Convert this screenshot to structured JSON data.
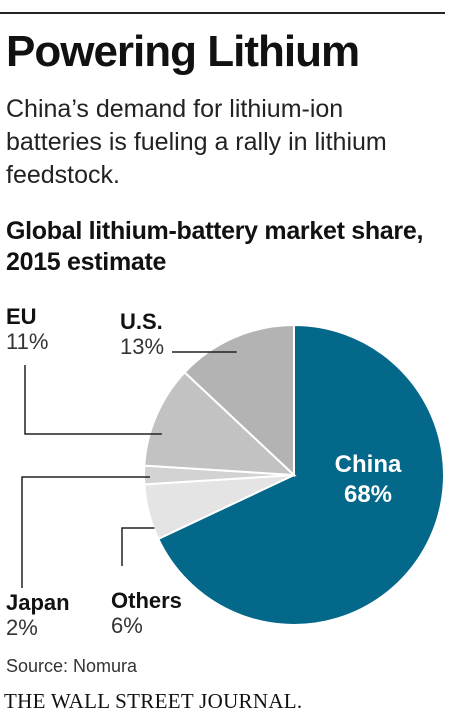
{
  "header": {
    "title": "Powering Lithium",
    "subtitle": "China’s demand for lithium-ion batteries is fueling a rally in lithium feedstock."
  },
  "chart_data": {
    "type": "pie",
    "title": "Global lithium-battery market share, 2015 estimate",
    "slices": [
      {
        "label": "China",
        "value": 68,
        "display": "68%",
        "color": "#04688a"
      },
      {
        "label": "Others",
        "value": 6,
        "display": "6%",
        "color": "#e4e4e4"
      },
      {
        "label": "Japan",
        "value": 2,
        "display": "2%",
        "color": "#d2d2d2"
      },
      {
        "label": "EU",
        "value": 11,
        "display": "11%",
        "color": "#c2c2c2"
      },
      {
        "label": "U.S.",
        "value": 13,
        "display": "13%",
        "color": "#b3b3b3"
      }
    ],
    "start": "12 o'clock",
    "direction": "clockwise"
  },
  "footer": {
    "source": "Source: Nomura",
    "brand": "THE WALL STREET JOURNAL."
  }
}
